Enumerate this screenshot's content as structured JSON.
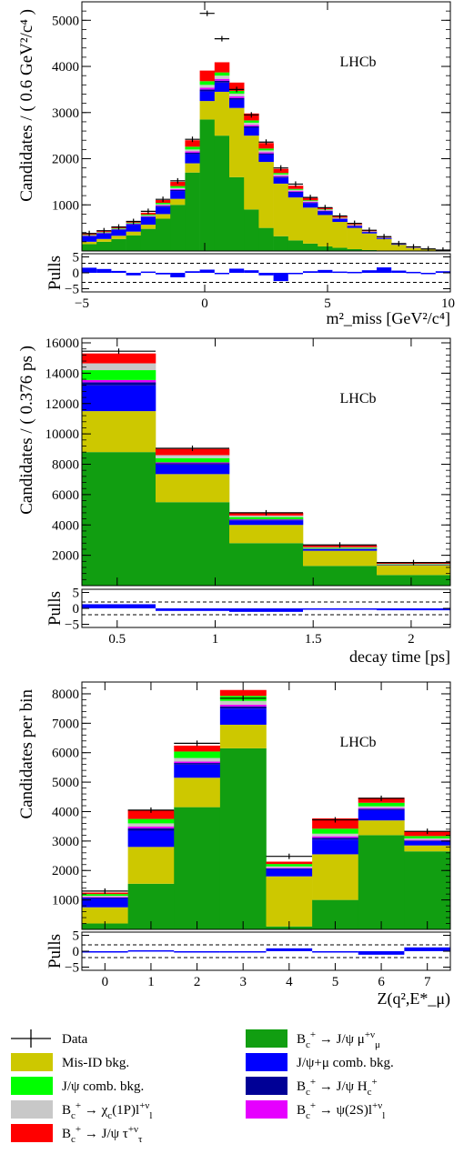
{
  "colors": {
    "signal_mu": "#119e11",
    "misid": "#cdc800",
    "combinatorial": "#0000ff",
    "jpsi_comb": "#00ff00",
    "chic": "#c8c8c8",
    "tau": "#ff0000",
    "hc": "#000096",
    "psi2s": "#e600ff",
    "data": "#000000"
  },
  "legend": {
    "items": [
      {
        "key": "data",
        "label": "Data",
        "kind": "marker"
      },
      {
        "key": "misid",
        "label": "Mis-ID bkg.",
        "kind": "box"
      },
      {
        "key": "jpsi_comb",
        "label": "J/ψ comb. bkg.",
        "kind": "box"
      },
      {
        "key": "chic",
        "label": "B_c^+ → χ_c(1P)l^+ν_l",
        "kind": "box"
      },
      {
        "key": "tau",
        "label": "B_c^+ → J/ψ τ^+ν_τ",
        "kind": "box"
      },
      {
        "key": "signal_mu",
        "label": "B_c^+ → J/ψ μ^+ν_μ",
        "kind": "box"
      },
      {
        "key": "combinatorial",
        "label": "J/ψ+μ comb. bkg.",
        "kind": "box"
      },
      {
        "key": "hc",
        "label": "B_c^+ → J/ψ H_c^+",
        "kind": "box"
      },
      {
        "key": "psi2s",
        "label": "B_c^+ → ψ(2S)l^+ν_l",
        "kind": "box"
      }
    ]
  },
  "chart_data": [
    {
      "type": "bar",
      "stacked": true,
      "annotation": "LHCb",
      "xlabel": "m²_miss [GeV²/c⁴]",
      "ylabel": "Candidates / ( 0.6 GeV²/c⁴ )",
      "xlim": [
        -5,
        10
      ],
      "ylim": [
        0,
        5400
      ],
      "x_ticks": [
        -5,
        0,
        5,
        10
      ],
      "y_ticks": [
        1000,
        2000,
        3000,
        4000,
        5000
      ],
      "bin_edges": [
        -5.0,
        -4.4,
        -3.8,
        -3.2,
        -2.6,
        -2.0,
        -1.4,
        -0.8,
        -0.2,
        0.4,
        1.0,
        1.6,
        2.2,
        2.8,
        3.4,
        4.0,
        4.6,
        5.2,
        5.8,
        6.4,
        7.0,
        7.6,
        8.2,
        8.8,
        9.4,
        10.0
      ],
      "series": [
        {
          "key": "signal_mu",
          "values": [
            150,
            200,
            260,
            340,
            480,
            700,
            1000,
            1700,
            2850,
            2500,
            1600,
            900,
            500,
            320,
            230,
            160,
            100,
            70,
            40,
            20,
            10,
            5,
            3,
            2,
            1
          ]
        },
        {
          "key": "misid",
          "values": [
            50,
            60,
            70,
            80,
            90,
            100,
            130,
            200,
            400,
            950,
            1500,
            1600,
            1430,
            1140,
            930,
            780,
            680,
            560,
            460,
            360,
            250,
            130,
            60,
            30,
            10
          ]
        },
        {
          "key": "combinatorial",
          "values": [
            120,
            120,
            130,
            150,
            160,
            160,
            170,
            200,
            210,
            200,
            180,
            170,
            160,
            130,
            110,
            100,
            80,
            60,
            40,
            30,
            20,
            10,
            5,
            3,
            2
          ]
        },
        {
          "key": "hc",
          "values": [
            10,
            10,
            10,
            12,
            15,
            18,
            22,
            30,
            40,
            40,
            35,
            30,
            25,
            20,
            15,
            12,
            10,
            8,
            6,
            4,
            3,
            2,
            1,
            1,
            0
          ]
        },
        {
          "key": "psi2s",
          "values": [
            5,
            5,
            5,
            8,
            10,
            15,
            20,
            30,
            40,
            40,
            35,
            30,
            25,
            20,
            15,
            12,
            10,
            8,
            6,
            4,
            3,
            2,
            1,
            1,
            0
          ]
        },
        {
          "key": "chic",
          "values": [
            5,
            5,
            8,
            10,
            15,
            20,
            25,
            40,
            60,
            70,
            60,
            50,
            40,
            30,
            25,
            20,
            15,
            10,
            8,
            6,
            4,
            3,
            2,
            1,
            0
          ]
        },
        {
          "key": "jpsi_comb",
          "values": [
            10,
            10,
            10,
            15,
            20,
            30,
            40,
            60,
            80,
            70,
            60,
            50,
            40,
            30,
            20,
            15,
            10,
            8,
            6,
            4,
            3,
            2,
            1,
            1,
            0
          ]
        },
        {
          "key": "tau",
          "values": [
            20,
            20,
            25,
            30,
            40,
            60,
            90,
            140,
            230,
            220,
            180,
            150,
            120,
            90,
            70,
            50,
            40,
            30,
            20,
            15,
            10,
            5,
            3,
            2,
            1
          ]
        }
      ],
      "data_values": [
        380,
        440,
        520,
        640,
        860,
        1120,
        1520,
        2420,
        5150,
        4600,
        3500,
        2950,
        2360,
        1800,
        1450,
        1160,
        940,
        760,
        600,
        450,
        310,
        160,
        90,
        45,
        20
      ],
      "pulls": {
        "ylim": [
          -6,
          6
        ],
        "y_ticks": [
          -5,
          0,
          5
        ],
        "dashed": [
          -3,
          3
        ],
        "ylabel": "Pulls",
        "values": [
          1.6,
          1.2,
          0.6,
          -0.8,
          0.4,
          -0.5,
          -1.4,
          0.5,
          1.0,
          -0.4,
          1.3,
          0.8,
          -0.8,
          -2.6,
          -0.3,
          0.5,
          0.9,
          0.4,
          0.3,
          0.8,
          1.7,
          0.7,
          0.3,
          -0.3,
          0.5
        ]
      }
    },
    {
      "type": "bar",
      "stacked": true,
      "annotation": "LHCb",
      "xlabel": "decay time [ps]",
      "ylabel": "Candidates / ( 0.376 ps )",
      "xlim": [
        0.32,
        2.2
      ],
      "ylim": [
        0,
        16300
      ],
      "x_ticks": [
        0.5,
        1,
        1.5,
        2
      ],
      "x_tick_labels": [
        "0.5",
        "1",
        "1.5",
        "2"
      ],
      "y_ticks": [
        2000,
        4000,
        6000,
        8000,
        10000,
        12000,
        14000,
        16000
      ],
      "bin_edges": [
        0.32,
        0.696,
        1.072,
        1.448,
        1.824,
        2.2
      ],
      "series": [
        {
          "key": "signal_mu",
          "values": [
            8800,
            5500,
            2800,
            1300,
            700
          ]
        },
        {
          "key": "misid",
          "values": [
            2700,
            1850,
            1200,
            1000,
            650
          ]
        },
        {
          "key": "combinatorial",
          "values": [
            1700,
            630,
            300,
            100,
            30
          ]
        },
        {
          "key": "hc",
          "values": [
            200,
            80,
            40,
            20,
            10
          ]
        },
        {
          "key": "psi2s",
          "values": [
            150,
            60,
            30,
            15,
            5
          ]
        },
        {
          "key": "jpsi_comb",
          "values": [
            650,
            280,
            150,
            60,
            30
          ]
        },
        {
          "key": "chic",
          "values": [
            450,
            200,
            100,
            40,
            15
          ]
        },
        {
          "key": "tau",
          "values": [
            650,
            410,
            180,
            115,
            60
          ]
        }
      ],
      "data_values": [
        15450,
        9050,
        4800,
        2680,
        1520
      ],
      "pulls": {
        "ylim": [
          -6,
          6
        ],
        "y_ticks": [
          -5,
          0,
          5
        ],
        "dashed": [
          -2,
          2
        ],
        "ylabel": "Pulls",
        "values": [
          1.3,
          -0.8,
          -1.1,
          -0.3,
          -0.6
        ]
      }
    },
    {
      "type": "bar",
      "stacked": true,
      "annotation": "LHCb",
      "xlabel": "Z(q²,E*_μ)",
      "ylabel": "Candidates per bin",
      "xlim": [
        -0.5,
        7.5
      ],
      "ylim": [
        0,
        8400
      ],
      "x_ticks": [
        0,
        1,
        2,
        3,
        4,
        5,
        6,
        7
      ],
      "y_ticks": [
        1000,
        2000,
        3000,
        4000,
        5000,
        6000,
        7000,
        8000
      ],
      "bin_edges": [
        -0.5,
        0.5,
        1.5,
        2.5,
        3.5,
        4.5,
        5.5,
        6.5,
        7.5
      ],
      "series": [
        {
          "key": "signal_mu",
          "values": [
            200,
            1550,
            4150,
            6150,
            100,
            1000,
            3200,
            2650
          ]
        },
        {
          "key": "misid",
          "values": [
            550,
            1250,
            1000,
            800,
            1700,
            1550,
            500,
            200
          ]
        },
        {
          "key": "combinatorial",
          "values": [
            300,
            550,
            450,
            550,
            250,
            500,
            350,
            150
          ]
        },
        {
          "key": "hc",
          "values": [
            30,
            80,
            50,
            70,
            20,
            60,
            40,
            20
          ]
        },
        {
          "key": "psi2s",
          "values": [
            20,
            60,
            50,
            60,
            20,
            50,
            30,
            20
          ]
        },
        {
          "key": "chic",
          "values": [
            40,
            110,
            120,
            130,
            50,
            90,
            60,
            50
          ]
        },
        {
          "key": "jpsi_comb",
          "values": [
            60,
            150,
            220,
            170,
            80,
            170,
            120,
            80
          ]
        },
        {
          "key": "tau",
          "values": [
            50,
            300,
            200,
            200,
            80,
            350,
            170,
            150
          ]
        }
      ],
      "data_values": [
        1300,
        4050,
        6320,
        7850,
        2480,
        3720,
        4450,
        3330
      ],
      "pulls": {
        "ylim": [
          -6,
          6
        ],
        "y_ticks": [
          -5,
          0,
          5
        ],
        "dashed": [
          -2,
          2
        ],
        "ylabel": "Pulls",
        "values": [
          -0.4,
          0.3,
          -0.2,
          -0.4,
          0.9,
          -0.1,
          -1.1,
          1.2
        ]
      }
    }
  ]
}
